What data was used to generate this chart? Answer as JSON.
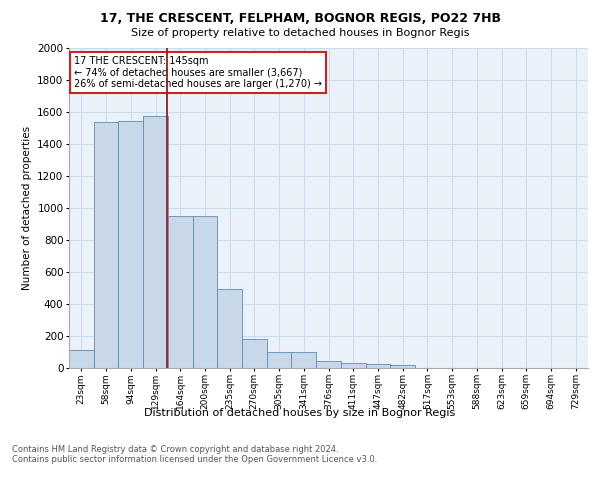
{
  "title1": "17, THE CRESCENT, FELPHAM, BOGNOR REGIS, PO22 7HB",
  "title2": "Size of property relative to detached houses in Bognor Regis",
  "xlabel": "Distribution of detached houses by size in Bognor Regis",
  "ylabel": "Number of detached properties",
  "footnote": "Contains HM Land Registry data © Crown copyright and database right 2024.\nContains public sector information licensed under the Open Government Licence v3.0.",
  "annotation_title": "17 THE CRESCENT: 145sqm",
  "annotation_line1": "← 74% of detached houses are smaller (3,667)",
  "annotation_line2": "26% of semi-detached houses are larger (1,270) →",
  "categories": [
    "23sqm",
    "58sqm",
    "94sqm",
    "129sqm",
    "164sqm",
    "200sqm",
    "235sqm",
    "270sqm",
    "305sqm",
    "341sqm",
    "376sqm",
    "411sqm",
    "447sqm",
    "482sqm",
    "517sqm",
    "553sqm",
    "588sqm",
    "623sqm",
    "659sqm",
    "694sqm",
    "729sqm"
  ],
  "bar_heights": [
    110,
    1535,
    1540,
    1570,
    950,
    945,
    490,
    180,
    100,
    95,
    40,
    30,
    20,
    15,
    0,
    0,
    0,
    0,
    0,
    0,
    0
  ],
  "bar_color": "#c8d8e8",
  "bar_edge_color": "#5b8db8",
  "grid_color": "#c8dcea",
  "background_color": "#eaf1f8",
  "vline_color": "#9b1b1b",
  "ylim": [
    0,
    2000
  ],
  "yticks": [
    0,
    200,
    400,
    600,
    800,
    1000,
    1200,
    1400,
    1600,
    1800,
    2000
  ]
}
